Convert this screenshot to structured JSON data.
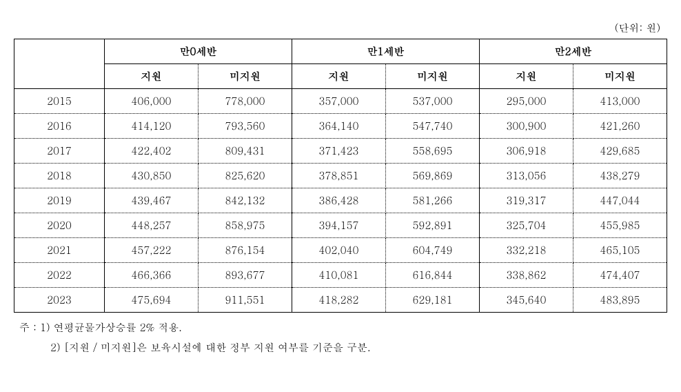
{
  "unit_label": "(단위: 원)",
  "table": {
    "type": "table",
    "background_color": "#ffffff",
    "border_color_solid": "#000000",
    "border_color_dotted": "#000000",
    "font_size": 15,
    "groups": [
      "만0세반",
      "만1세반",
      "만2세반"
    ],
    "subheaders": [
      "지원",
      "미지원"
    ],
    "year_column_width": 130,
    "data_column_width": 135,
    "rows": [
      {
        "year": "2015",
        "values": [
          "406,000",
          "778,000",
          "357,000",
          "537,000",
          "295,000",
          "413,000"
        ]
      },
      {
        "year": "2016",
        "values": [
          "414,120",
          "793,560",
          "364,140",
          "547,740",
          "300,900",
          "421,260"
        ]
      },
      {
        "year": "2017",
        "values": [
          "422,402",
          "809,431",
          "371,423",
          "558,695",
          "306,918",
          "429,685"
        ]
      },
      {
        "year": "2018",
        "values": [
          "430,850",
          "825,620",
          "378,851",
          "569,869",
          "313,056",
          "438,279"
        ]
      },
      {
        "year": "2019",
        "values": [
          "439,467",
          "842,132",
          "386,428",
          "581,266",
          "319,317",
          "447,044"
        ]
      },
      {
        "year": "2020",
        "values": [
          "448,257",
          "858,975",
          "394,157",
          "592,891",
          "325,704",
          "455,985"
        ]
      },
      {
        "year": "2021",
        "values": [
          "457,222",
          "876,154",
          "402,040",
          "604,749",
          "332,218",
          "465,105"
        ]
      },
      {
        "year": "2022",
        "values": [
          "466,366",
          "893,677",
          "410,081",
          "616,844",
          "338,862",
          "474,407"
        ]
      },
      {
        "year": "2023",
        "values": [
          "475,694",
          "911,551",
          "418,282",
          "629,181",
          "345,640",
          "483,895"
        ]
      }
    ]
  },
  "notes": {
    "prefix": "주 : ",
    "items": [
      "1) 연평균물가상승률 2% 적용.",
      "2) [지원 / 미지원]은 보육시설에 대한 정부 지원 여부를 기준을 구분."
    ],
    "font_size": 15
  }
}
